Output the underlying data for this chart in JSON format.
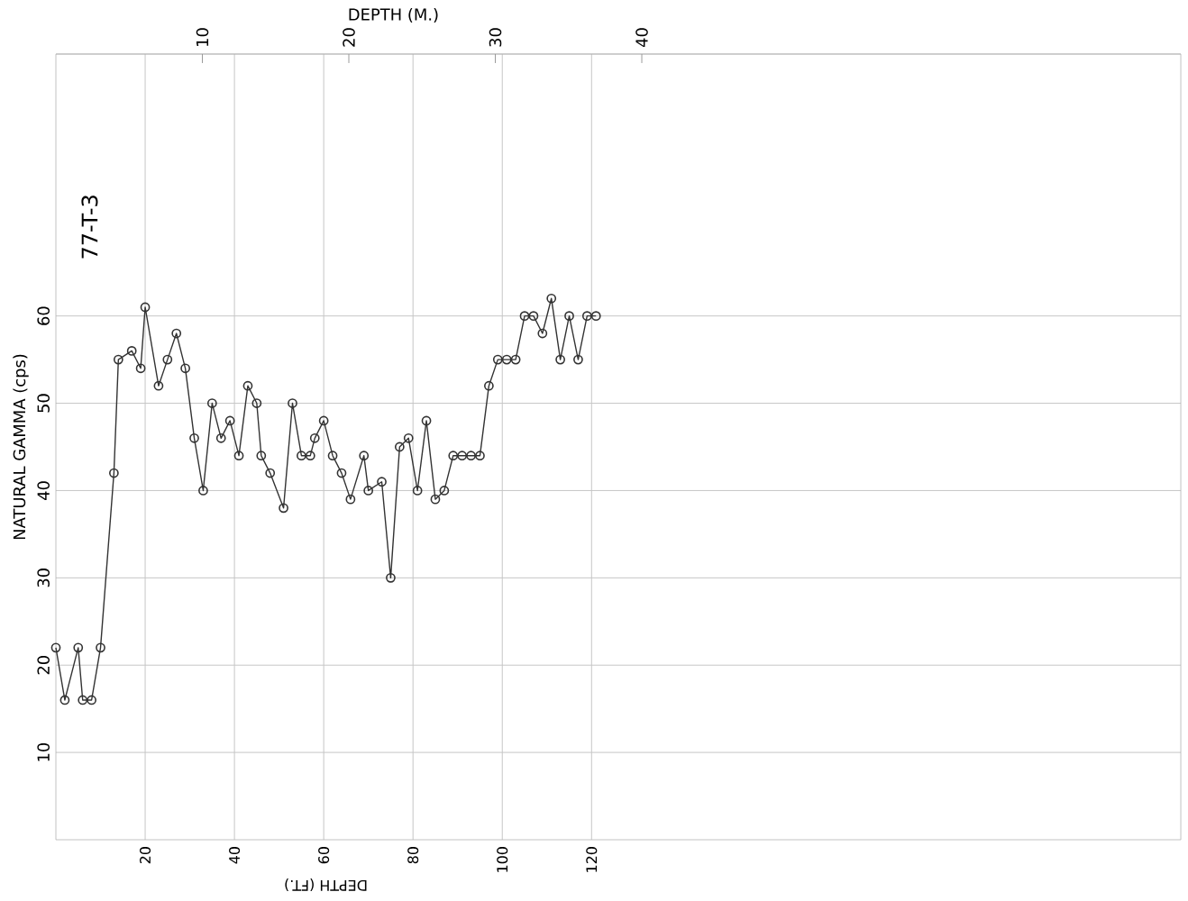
{
  "chart_data": {
    "type": "line",
    "xlabel": "DEPTH (FT.)",
    "x2label": "DEPTH (M.)",
    "ylabel": "NATURAL GAMMA (cps)",
    "annotations": [
      "77-T-3"
    ],
    "xlim": [
      0,
      252
    ],
    "xticks": [
      20,
      40,
      60,
      80,
      100,
      120
    ],
    "x2lim": [
      0,
      76.8
    ],
    "x2ticks": [
      10,
      20,
      30,
      40
    ],
    "ylim": [
      0,
      90
    ],
    "yticks": [
      10,
      20,
      30,
      40,
      50,
      60
    ],
    "grid": true,
    "marker": "circle",
    "line_style": "solid",
    "series": [
      {
        "color": "#333333",
        "x": [
          0,
          2,
          5,
          6,
          8,
          10,
          13,
          14,
          17,
          19,
          20,
          23,
          25,
          27,
          29,
          31,
          33,
          35,
          37,
          39,
          41,
          43,
          45,
          46,
          48,
          51,
          53,
          55,
          57,
          58,
          60,
          62,
          64,
          66,
          69,
          70,
          73,
          75,
          77,
          79,
          81,
          83,
          85,
          87,
          89,
          91,
          93,
          95,
          97,
          99,
          101,
          103,
          105,
          107,
          109,
          111,
          113,
          115,
          117,
          119,
          121
        ],
        "values": [
          22,
          16,
          22,
          16,
          16,
          22,
          42,
          55,
          56,
          54,
          61,
          52,
          55,
          58,
          54,
          46,
          40,
          50,
          46,
          48,
          44,
          52,
          50,
          44,
          42,
          38,
          50,
          44,
          44,
          46,
          48,
          44,
          42,
          39,
          44,
          40,
          41,
          30,
          45,
          46,
          40,
          48,
          39,
          40,
          44,
          44,
          44,
          44,
          52,
          55,
          55,
          55,
          60,
          60,
          58,
          62,
          55,
          60,
          55,
          60,
          60
        ]
      }
    ]
  }
}
